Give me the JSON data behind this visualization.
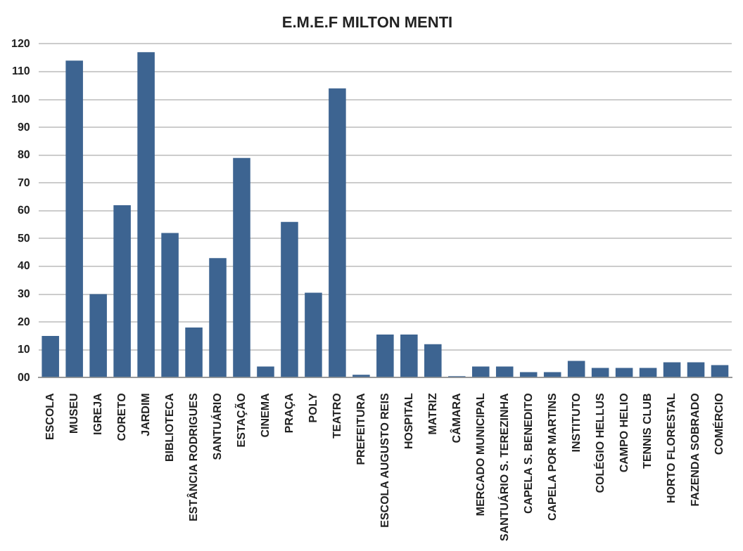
{
  "chart_data": {
    "type": "bar",
    "title": "E.M.E.F MILTON MENTI",
    "categories": [
      "ESCOLA",
      "MUSEU",
      "IGREJA",
      "CORETO",
      "JARDIM",
      "BIBLIOTECA",
      "ESTÂNCIA RODRIGUES",
      "SANTUÁRIO",
      "ESTAÇÃO",
      "CINEMA",
      "PRAÇA",
      "POLY",
      "TEATRO",
      "PREFEITURA",
      "ESCOLA AUGUSTO REIS",
      "HOSPITAL",
      "MATRIZ",
      "CÂMARA",
      "MERCADO MUNICIPAL",
      "SANTUÁRIO S. TEREZINHA",
      "CAPELA S. BENEDITO",
      "CAPELA POR MARTINS",
      "INSTITUTO",
      "COLÉGIO HELLUS",
      "CAMPO HELIO",
      "TENNIS CLUB",
      "HORTO FLORESTAL",
      "FAZENDA SOBRADO",
      "COMÉRCIO"
    ],
    "values": [
      15,
      114,
      30,
      62,
      117,
      52,
      18,
      43,
      79,
      4,
      56,
      30.5,
      104,
      1,
      15.5,
      15.5,
      12,
      0.5,
      4,
      4,
      2,
      2,
      6,
      3.5,
      3.5,
      3.5,
      5.5,
      5.5,
      4.5
    ],
    "color": "#3d6491",
    "ylim": [
      0,
      120
    ],
    "yticks": [
      {
        "value": 0,
        "label": "00"
      },
      10,
      20,
      30,
      40,
      50,
      60,
      70,
      80,
      90,
      100,
      110,
      120
    ],
    "grid": "y",
    "legend": false
  }
}
